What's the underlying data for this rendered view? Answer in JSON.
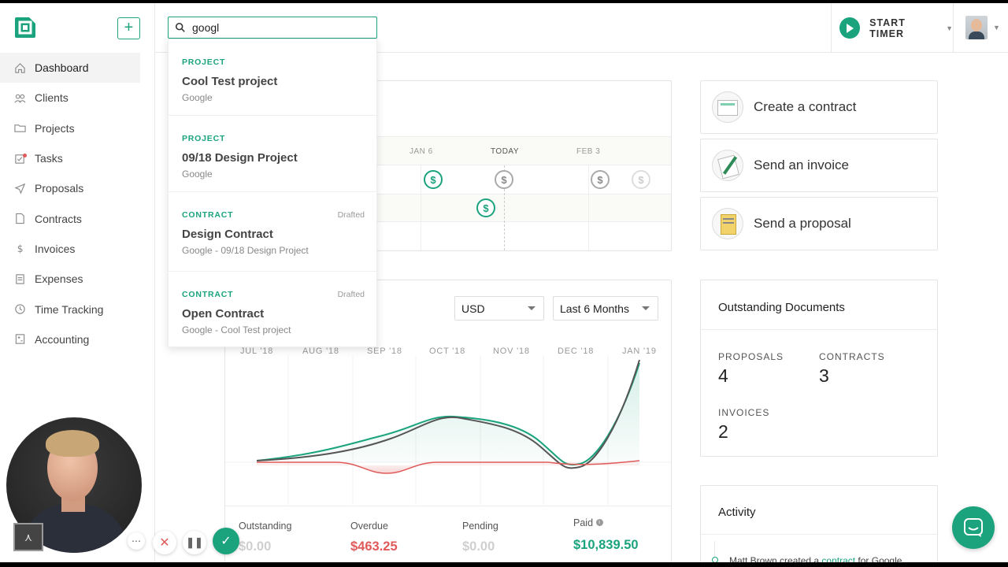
{
  "sidebar": {
    "add_label": "+",
    "items": [
      {
        "label": "Dashboard",
        "icon": "home-icon"
      },
      {
        "label": "Clients",
        "icon": "clients-icon"
      },
      {
        "label": "Projects",
        "icon": "folder-icon"
      },
      {
        "label": "Tasks",
        "icon": "tasks-icon"
      },
      {
        "label": "Proposals",
        "icon": "send-icon"
      },
      {
        "label": "Contracts",
        "icon": "document-icon"
      },
      {
        "label": "Invoices",
        "icon": "dollar-icon"
      },
      {
        "label": "Expenses",
        "icon": "receipt-icon"
      },
      {
        "label": "Time Tracking",
        "icon": "clock-icon"
      },
      {
        "label": "Accounting",
        "icon": "calculator-icon"
      }
    ]
  },
  "search": {
    "value": "googl"
  },
  "timer": {
    "label": "START TIMER"
  },
  "dropdown": [
    {
      "type": "PROJECT",
      "status": "",
      "name": "Cool Test project",
      "sub": "Google"
    },
    {
      "type": "PROJECT",
      "status": "",
      "name": "09/18 Design Project",
      "sub": "Google"
    },
    {
      "type": "CONTRACT",
      "status": "Drafted",
      "name": "Design Contract",
      "sub": "Google - 09/18 Design Project"
    },
    {
      "type": "CONTRACT",
      "status": "Drafted",
      "name": "Open Contract",
      "sub": "Google - Cool Test project"
    }
  ],
  "timeline": {
    "labels": [
      "JAN 6",
      "TODAY",
      "FEB 3"
    ],
    "coin_symbol": "$"
  },
  "actions": [
    {
      "label": "Create a contract"
    },
    {
      "label": "Send an invoice"
    },
    {
      "label": "Send a proposal"
    }
  ],
  "income": {
    "currency": "USD",
    "period": "Last 6 Months",
    "months": [
      "JUL '18",
      "AUG '18",
      "SEP '18",
      "OCT '18",
      "NOV '18",
      "DEC '18",
      "JAN '19"
    ],
    "stats": [
      {
        "label": "Outstanding",
        "value": "$0.00",
        "color": "#cfcfcf"
      },
      {
        "label": "Overdue",
        "value": "$463.25",
        "color": "#e05a5a"
      },
      {
        "label": "Pending",
        "value": "$0.00",
        "color": "#cfcfcf"
      },
      {
        "label": "Paid",
        "value": "$10,839.50",
        "color": "#1aa37d"
      }
    ]
  },
  "documents": {
    "title": "Outstanding Documents",
    "proposals_label": "PROPOSALS",
    "proposals": "4",
    "contracts_label": "CONTRACTS",
    "contracts": "3",
    "invoices_label": "INVOICES",
    "invoices": "2"
  },
  "activity": {
    "title": "Activity",
    "text_pre": "Matt Brown created a ",
    "text_link": "contract",
    "text_post": " for Google"
  },
  "colors": {
    "accent": "#1aa37d",
    "danger": "#e05a5a"
  }
}
